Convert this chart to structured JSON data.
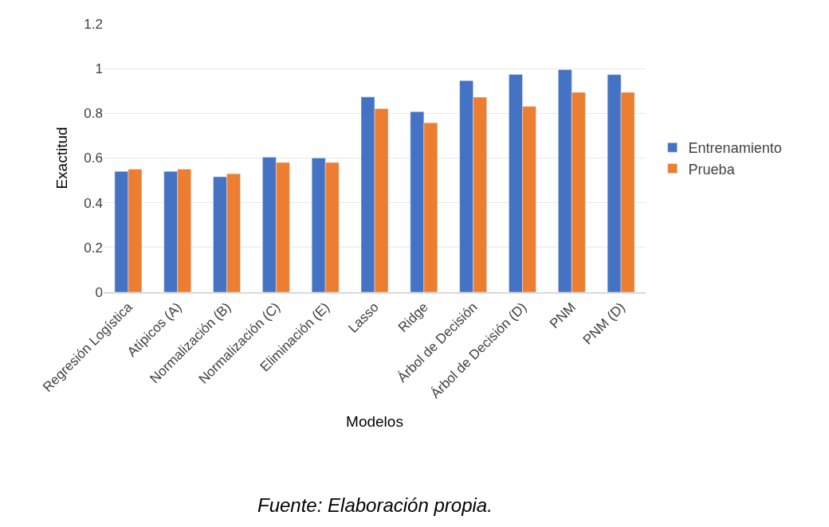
{
  "chart_data": {
    "type": "bar",
    "xlabel": "Modelos",
    "ylabel": "Exactitud",
    "categories": [
      "Regresión Logística",
      "Atípicos (A)",
      "Normalización (B)",
      "Normalización (C)",
      "Eliminación (E)",
      "Lasso",
      "Ridge",
      "Árbol de Decisión",
      "Árbol de Decisión (D)",
      "PNM",
      "PNM (D)"
    ],
    "series": [
      {
        "name": "Entrenamiento",
        "color": "#4472c4",
        "values": [
          0.54,
          0.54,
          0.516,
          0.604,
          0.6,
          0.873,
          0.807,
          0.946,
          0.974,
          0.995,
          0.973
        ]
      },
      {
        "name": "Prueba",
        "color": "#ed7d31",
        "values": [
          0.55,
          0.55,
          0.53,
          0.58,
          0.58,
          0.821,
          0.758,
          0.872,
          0.831,
          0.894,
          0.894
        ]
      }
    ],
    "ylim": [
      0,
      1.2
    ],
    "yticks": [
      0,
      0.2,
      0.4,
      0.6,
      0.8,
      1,
      1.2
    ],
    "grid": "y",
    "legend": "right",
    "annotations": [
      "Fuente: Elaboración propia."
    ]
  }
}
